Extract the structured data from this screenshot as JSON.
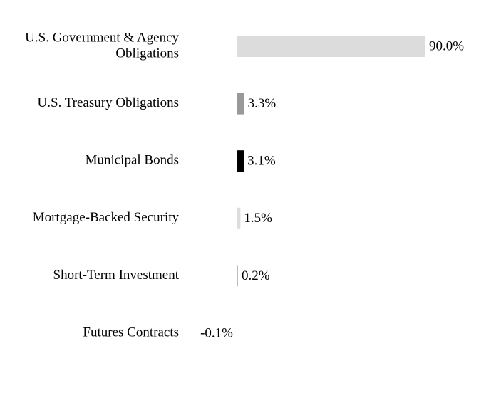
{
  "chart_data": {
    "type": "bar",
    "orientation": "horizontal",
    "title": "",
    "xlabel": "",
    "ylabel": "",
    "grid": false,
    "legend": "none",
    "categories": [
      "U.S. Government & Agency Obligations",
      "U.S. Treasury Obligations",
      "Municipal Bonds",
      "Mortgage-Backed Security",
      "Short-Term Investment",
      "Futures Contracts"
    ],
    "category_lines": [
      [
        "U.S. Government & Agency",
        "Obligations"
      ],
      [
        "U.S. Treasury Obligations"
      ],
      [
        "Municipal Bonds"
      ],
      [
        "Mortgage-Backed Security"
      ],
      [
        "Short-Term Investment"
      ],
      [
        "Futures Contracts"
      ]
    ],
    "values": [
      90.0,
      3.3,
      3.1,
      1.5,
      0.2,
      -0.1
    ],
    "value_labels": [
      "90.0%",
      "3.3%",
      "3.1%",
      "1.5%",
      "0.2%",
      "-0.1%"
    ],
    "unit": "%",
    "colors": [
      "#dcdcdc",
      "#999999",
      "#000000",
      "#dcdcdc",
      "#bdbdbd",
      "#bdbdbd"
    ],
    "xlim": [
      -0.1,
      90.0
    ]
  }
}
